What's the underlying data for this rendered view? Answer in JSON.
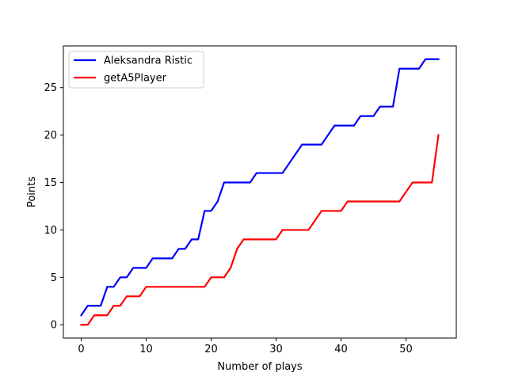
{
  "chart_data": {
    "type": "line",
    "title": "",
    "xlabel": "Number of plays",
    "ylabel": "Points",
    "xlim": [
      -2.75,
      57.75
    ],
    "ylim": [
      -1.4,
      29.4
    ],
    "xticks": [
      0,
      10,
      20,
      30,
      40,
      50
    ],
    "yticks": [
      0,
      5,
      10,
      15,
      20,
      25
    ],
    "grid": false,
    "legend_position": "upper-left",
    "series": [
      {
        "name": "Aleksandra Ristic",
        "color": "#0000ff",
        "x": [
          0,
          1,
          2,
          3,
          4,
          5,
          6,
          7,
          8,
          9,
          10,
          11,
          12,
          13,
          14,
          15,
          16,
          17,
          18,
          19,
          20,
          21,
          22,
          23,
          24,
          25,
          26,
          27,
          28,
          29,
          30,
          31,
          32,
          33,
          34,
          35,
          36,
          37,
          38,
          39,
          40,
          41,
          42,
          43,
          44,
          45,
          46,
          47,
          48,
          49,
          50,
          51,
          52,
          53,
          54,
          55
        ],
        "y": [
          1,
          2,
          2,
          2,
          4,
          4,
          5,
          5,
          6,
          6,
          6,
          7,
          7,
          7,
          7,
          8,
          8,
          9,
          9,
          12,
          12,
          13,
          15,
          15,
          15,
          15,
          15,
          16,
          16,
          16,
          16,
          16,
          17,
          18,
          19,
          19,
          19,
          19,
          20,
          21,
          21,
          21,
          21,
          22,
          22,
          22,
          23,
          23,
          23,
          27,
          27,
          27,
          27,
          28,
          28,
          28
        ]
      },
      {
        "name": "getA5Player",
        "color": "#ff0000",
        "x": [
          0,
          1,
          2,
          3,
          4,
          5,
          6,
          7,
          8,
          9,
          10,
          11,
          12,
          13,
          14,
          15,
          16,
          17,
          18,
          19,
          20,
          21,
          22,
          23,
          24,
          25,
          26,
          27,
          28,
          29,
          30,
          31,
          32,
          33,
          34,
          35,
          36,
          37,
          38,
          39,
          40,
          41,
          42,
          43,
          44,
          45,
          46,
          47,
          48,
          49,
          50,
          51,
          52,
          53,
          54,
          55
        ],
        "y": [
          0,
          0,
          1,
          1,
          1,
          2,
          2,
          3,
          3,
          3,
          4,
          4,
          4,
          4,
          4,
          4,
          4,
          4,
          4,
          4,
          5,
          5,
          5,
          6,
          8,
          9,
          9,
          9,
          9,
          9,
          9,
          10,
          10,
          10,
          10,
          10,
          11,
          12,
          12,
          12,
          12,
          13,
          13,
          13,
          13,
          13,
          13,
          13,
          13,
          13,
          14,
          15,
          15,
          15,
          15,
          20
        ]
      }
    ]
  }
}
